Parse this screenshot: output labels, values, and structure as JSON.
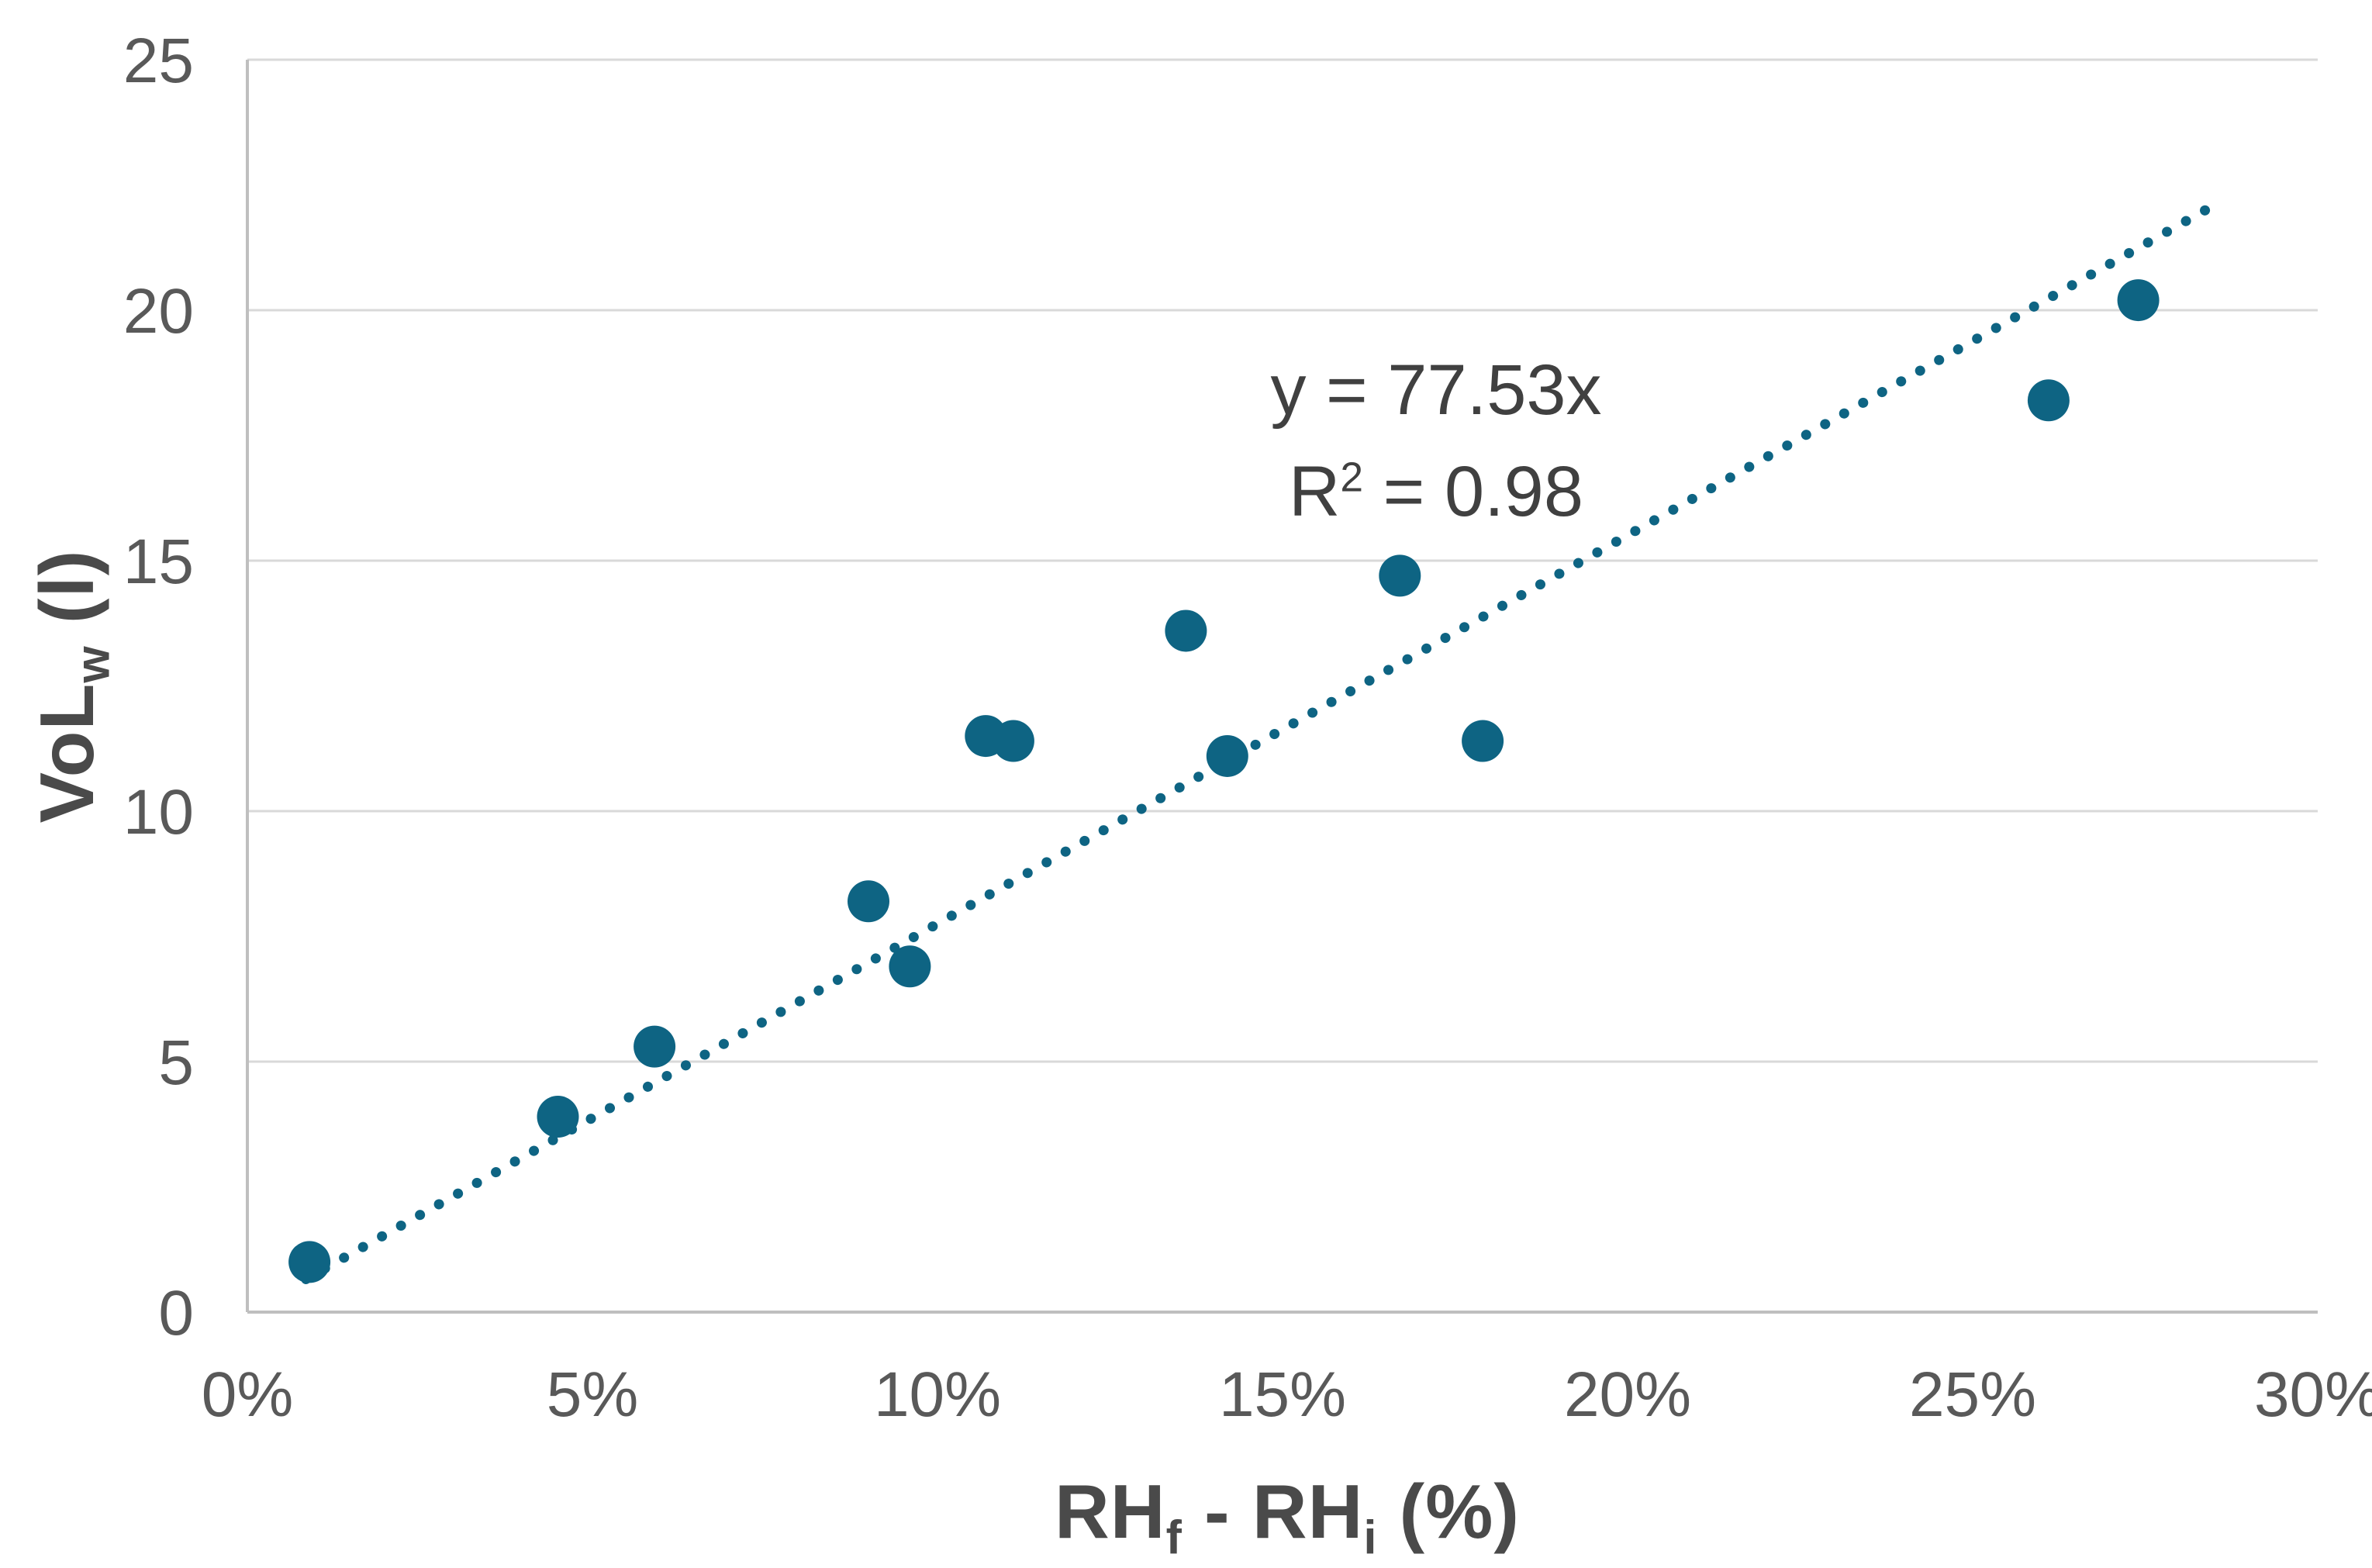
{
  "chart_data": {
    "type": "scatter",
    "title": "",
    "xlabel": "RHf - RHi (%)",
    "ylabel": "VoLw (l)",
    "x_axis": {
      "min_pct": 0,
      "max_pct": 30,
      "tick_step_pct": 5,
      "tick_labels": [
        "0%",
        "5%",
        "10%",
        "15%",
        "20%",
        "25%",
        "30%"
      ]
    },
    "y_axis": {
      "min": 0,
      "max": 25,
      "tick_step": 5,
      "tick_labels": [
        "0",
        "5",
        "10",
        "15",
        "20",
        "25"
      ]
    },
    "grid": "horizontal-only",
    "legend": false,
    "points": [
      {
        "x_pct": 0.9,
        "y": 1.0
      },
      {
        "x_pct": 4.5,
        "y": 3.9
      },
      {
        "x_pct": 5.9,
        "y": 5.3
      },
      {
        "x_pct": 9.0,
        "y": 8.2
      },
      {
        "x_pct": 9.6,
        "y": 6.9
      },
      {
        "x_pct": 10.7,
        "y": 11.5
      },
      {
        "x_pct": 11.1,
        "y": 11.4
      },
      {
        "x_pct": 13.6,
        "y": 13.6
      },
      {
        "x_pct": 14.2,
        "y": 11.1
      },
      {
        "x_pct": 16.7,
        "y": 14.7
      },
      {
        "x_pct": 17.9,
        "y": 11.4
      },
      {
        "x_pct": 26.1,
        "y": 18.2
      },
      {
        "x_pct": 27.4,
        "y": 20.2
      }
    ],
    "trendline": {
      "equation": "y = 77.53x",
      "r_squared": "0.98",
      "slope_per_fraction": 77.53,
      "x_start_pct": 0.85,
      "x_end_pct": 28.4,
      "style": "dotted"
    },
    "colors": {
      "point": "#0E6483",
      "trendline": "#0E6483",
      "gridline": "#D9D9D9",
      "axis_line": "#BFBFBF",
      "tick_text": "#595959",
      "axis_title_text": "#4A4A4A",
      "annotation_text": "#404040"
    }
  },
  "annotation": {
    "line1": "y = 77.53x",
    "r_base": "R",
    "r_sup": "2",
    "r_rest": " = 0.98"
  },
  "y_title": {
    "base": "VoL",
    "sub": "w",
    "rest": " (l)"
  },
  "x_title": {
    "base": "RH",
    "sub1": "f",
    "mid": " - RH",
    "sub2": "i",
    "rest": " (%)"
  }
}
